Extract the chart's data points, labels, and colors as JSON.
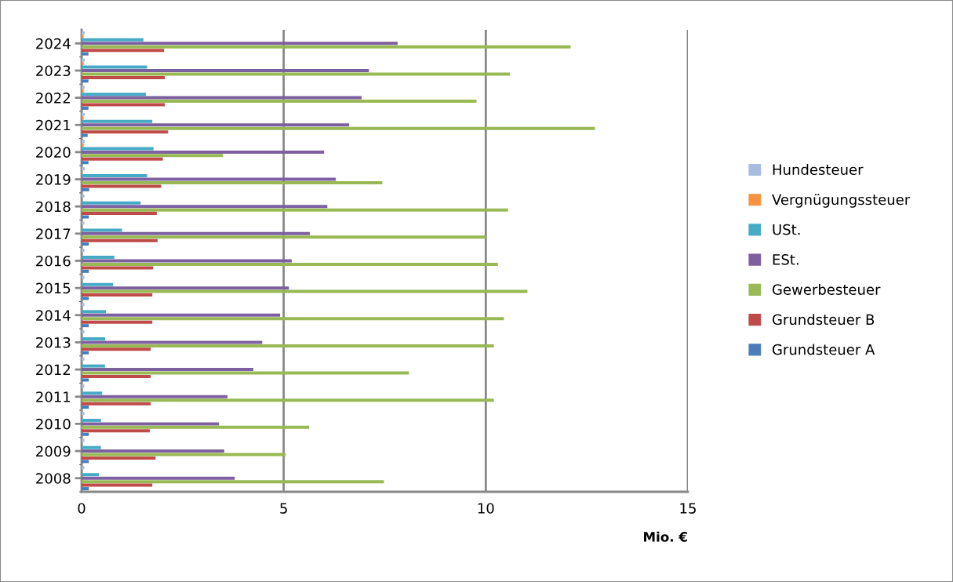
{
  "chart_data": {
    "type": "bar",
    "orientation": "horizontal",
    "xlabel": "Mio. €",
    "categories": [
      "2024",
      "2023",
      "2022",
      "2021",
      "2020",
      "2019",
      "2018",
      "2017",
      "2016",
      "2015",
      "2014",
      "2013",
      "2012",
      "2011",
      "2010",
      "2009",
      "2008"
    ],
    "series": [
      {
        "name": "Hundesteuer",
        "color": "#a9bce0",
        "values": [
          0.08,
          0.08,
          0.08,
          0.08,
          0.08,
          0.08,
          0.07,
          0.07,
          0.07,
          0.07,
          0.07,
          0.07,
          0.07,
          0.07,
          0.07,
          0.07,
          0.07
        ]
      },
      {
        "name": "Vergnügungssteuer",
        "color": "#f69240",
        "values": [
          0.05,
          0.05,
          0.05,
          0.05,
          0.05,
          0.02,
          0,
          0,
          0,
          0,
          0,
          0,
          0,
          0,
          0,
          0,
          0
        ]
      },
      {
        "name": "USt.",
        "color": "#46aac5",
        "values": [
          1.53,
          1.62,
          1.59,
          1.75,
          1.78,
          1.62,
          1.46,
          1.0,
          0.81,
          0.78,
          0.6,
          0.58,
          0.58,
          0.51,
          0.48,
          0.48,
          0.43
        ]
      },
      {
        "name": "ESt.",
        "color": "#7d60a0",
        "values": [
          7.82,
          7.11,
          6.93,
          6.62,
          6.0,
          6.29,
          6.08,
          5.65,
          5.2,
          5.13,
          4.91,
          4.47,
          4.25,
          3.61,
          3.4,
          3.53,
          3.79
        ]
      },
      {
        "name": "Gewerbesteuer",
        "color": "#98b954",
        "values": [
          12.1,
          10.6,
          9.77,
          12.7,
          3.5,
          7.44,
          10.55,
          10.0,
          10.3,
          11.03,
          10.45,
          10.2,
          8.1,
          10.2,
          5.63,
          5.05,
          7.48
        ]
      },
      {
        "name": "Grundsteuer B",
        "color": "#be4b48",
        "values": [
          2.04,
          2.06,
          2.06,
          2.14,
          2.01,
          1.97,
          1.86,
          1.88,
          1.77,
          1.75,
          1.75,
          1.71,
          1.71,
          1.71,
          1.69,
          1.83,
          1.75
        ]
      },
      {
        "name": "Grundsteuer A",
        "color": "#4a7ebb",
        "values": [
          0.17,
          0.17,
          0.17,
          0.15,
          0.17,
          0.19,
          0.18,
          0.18,
          0.18,
          0.18,
          0.18,
          0.18,
          0.18,
          0.18,
          0.18,
          0.18,
          0.18
        ]
      }
    ],
    "xlim": [
      0,
      15
    ],
    "xticks": [
      0,
      5,
      10,
      15
    ],
    "grid": "x",
    "legend": "right"
  }
}
